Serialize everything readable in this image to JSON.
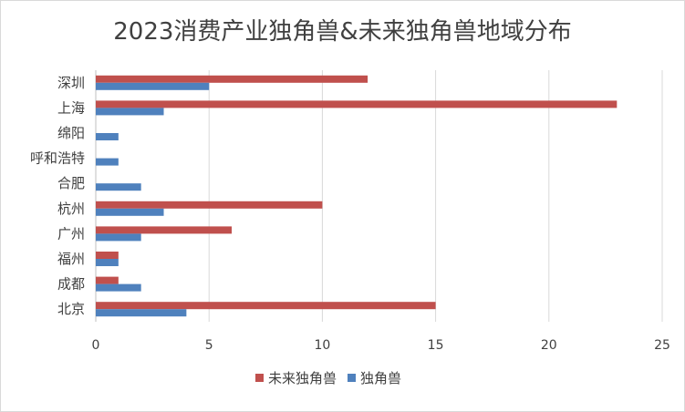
{
  "chart_data": {
    "type": "bar",
    "orientation": "horizontal",
    "title": "2023消费产业独角兽&未来独角兽地域分布",
    "categories": [
      "北京",
      "成都",
      "福州",
      "广州",
      "杭州",
      "合肥",
      "呼和浩特",
      "绵阳",
      "上海",
      "深圳"
    ],
    "series": [
      {
        "name": "独角兽",
        "color": "#4f81bd",
        "values": [
          4,
          2,
          1,
          2,
          3,
          2,
          1,
          1,
          3,
          5
        ]
      },
      {
        "name": "未来独角兽",
        "color": "#c0504d",
        "values": [
          15,
          1,
          1,
          6,
          10,
          0,
          0,
          0,
          23,
          12
        ]
      }
    ],
    "xlim": [
      0,
      25
    ],
    "xticks": [
      0,
      5,
      10,
      15,
      20,
      25
    ],
    "grid": true,
    "legend": "bottom",
    "legend_order": [
      "未来独角兽",
      "独角兽"
    ]
  }
}
